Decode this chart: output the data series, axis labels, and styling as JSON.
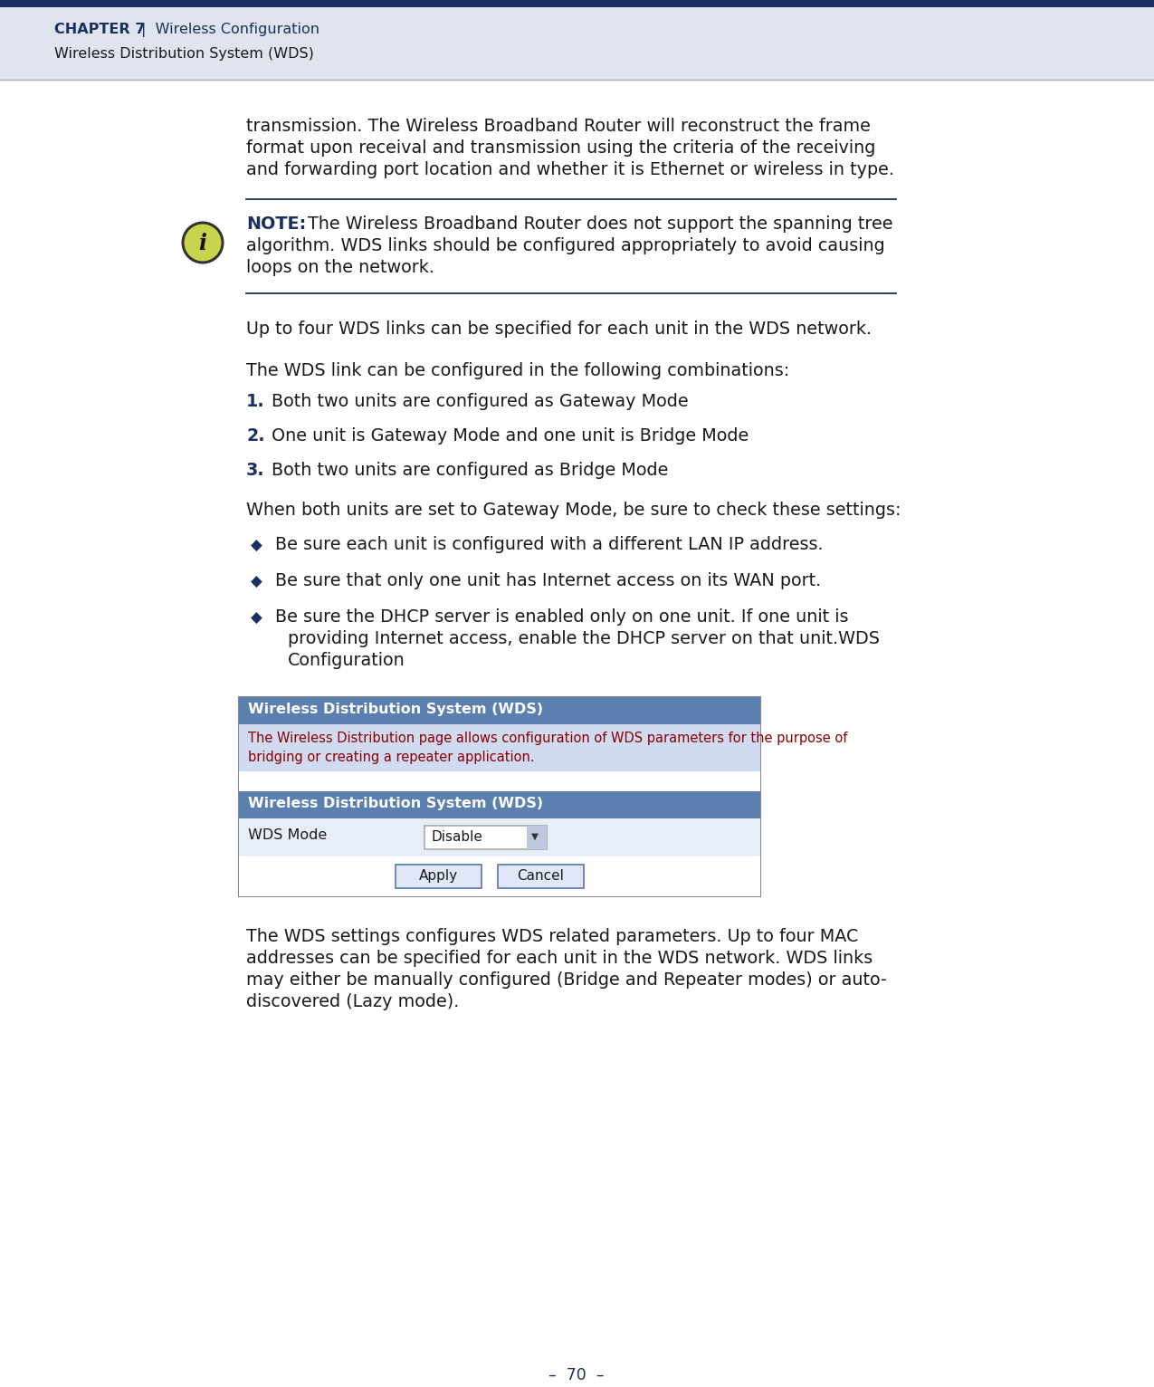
{
  "header_top_color": "#1a3060",
  "header_band_color": "#e0e4ee",
  "header_chapter": "CHAPTER 7",
  "header_right": "Wireless Configuration",
  "header_sub": "Wireless Distribution System (WDS)",
  "header_text_color": "#1a3060",
  "body_bg": "#ffffff",
  "body_text_color": "#1a1a1a",
  "note_label_color": "#1a3060",
  "note_icon_fill": "#c8d44e",
  "note_icon_border": "#333333",
  "bullet_color": "#1a3060",
  "section_line_color": "#1a3060",
  "wds_box_border": "#888888",
  "wds_header_bg": "#5b7faf",
  "wds_header_text": "#ffffff",
  "wds_desc_bg": "#d0daf0",
  "wds_desc_text_color": "#880000",
  "wds_row_bg": "#e8eef8",
  "footer_text_color": "#1a3060",
  "footer_text": "–  70  –",
  "para1_lines": [
    "transmission. The Wireless Broadband Router will reconstruct the frame",
    "format upon receival and transmission using the criteria of the receiving",
    "and forwarding port location and whether it is Ethernet or wireless in type."
  ],
  "note_text_lines": [
    "The Wireless Broadband Router does not support the spanning tree",
    "algorithm. WDS links should be configured appropriately to avoid causing",
    "loops on the network."
  ],
  "para2": "Up to four WDS links can be specified for each unit in the WDS network.",
  "para3": "The WDS link can be configured in the following combinations:",
  "numbered_items": [
    "Both two units are configured as Gateway Mode",
    "One unit is Gateway Mode and one unit is Bridge Mode",
    "Both two units are configured as Bridge Mode"
  ],
  "para4": "When both units are set to Gateway Mode, be sure to check these settings:",
  "bullet_items": [
    [
      "Be sure each unit is configured with a different LAN IP address."
    ],
    [
      "Be sure that only one unit has Internet access on its WAN port."
    ],
    [
      "Be sure the DHCP server is enabled only on one unit. If one unit is",
      "providing Internet access, enable the DHCP server on that unit.WDS",
      "Configuration"
    ]
  ],
  "wds_title": "Wireless Distribution System (WDS)",
  "wds_desc_lines": [
    "The Wireless Distribution page allows configuration of WDS parameters for the purpose of",
    "bridging or creating a repeater application."
  ],
  "wds_section": "Wireless Distribution System (WDS)",
  "wds_label": "WDS Mode",
  "wds_value": "Disable",
  "para5_lines": [
    "The WDS settings configures WDS related parameters. Up to four MAC",
    "addresses can be specified for each unit in the WDS network. WDS links",
    "may either be manually configured (Bridge and Repeater modes) or auto-",
    "discovered (Lazy mode)."
  ]
}
